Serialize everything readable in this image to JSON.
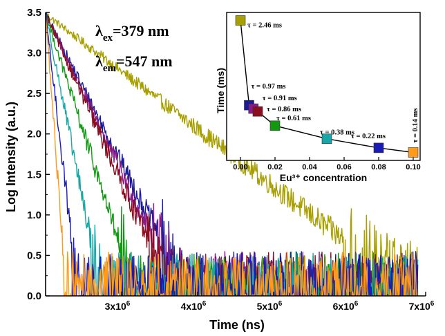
{
  "chart_data": [
    {
      "type": "line",
      "title": "",
      "xlabel": "Time (ns)",
      "ylabel": "Log Intensity (a.u.)",
      "xlim": [
        2000000,
        7000000
      ],
      "ylim": [
        0,
        3.5
      ],
      "x_tick_labels": [
        {
          "value": 3000000,
          "mantissa": "3x10",
          "exp": "6"
        },
        {
          "value": 4000000,
          "mantissa": "4x10",
          "exp": "6"
        },
        {
          "value": 5000000,
          "mantissa": "5x10",
          "exp": "6"
        },
        {
          "value": 6000000,
          "mantissa": "6x10",
          "exp": "6"
        },
        {
          "value": 7000000,
          "mantissa": "7x10",
          "exp": "6"
        }
      ],
      "y_ticks": [
        0.0,
        0.5,
        1.0,
        1.5,
        2.0,
        2.5,
        3.0,
        3.5
      ],
      "y_tick_labels": [
        "0.0",
        "0.5",
        "1.0",
        "1.5",
        "2.0",
        "2.5",
        "3.0",
        "3.5"
      ],
      "annotations": {
        "ex": {
          "lambda": "λ",
          "sub": "ex",
          "value": "=379 nm"
        },
        "em": {
          "lambda": "λ",
          "sub": "em",
          "value": "=547 nm"
        }
      },
      "series": [
        {
          "color": "#a89f00",
          "x0": 2000000,
          "decay_per_ns": 7.1e-07,
          "noise_floor": 0.45,
          "x_end": 6900000
        },
        {
          "color": "#1a1a9a",
          "x0": 2000000,
          "decay_per_ns": 1.84e-06,
          "noise_floor": 0.45,
          "x_end": 6900000
        },
        {
          "color": "#8a1a8a",
          "x0": 2000000,
          "decay_per_ns": 1.96e-06,
          "noise_floor": 0.45,
          "x_end": 6900000
        },
        {
          "color": "#8b0f1f",
          "x0": 2000000,
          "decay_per_ns": 2.08e-06,
          "noise_floor": 0.45,
          "x_end": 6900000
        },
        {
          "color": "#119911",
          "x0": 2000000,
          "decay_per_ns": 2.92e-06,
          "noise_floor": 0.45,
          "x_end": 6900000
        },
        {
          "color": "#18a6a6",
          "x0": 2000000,
          "decay_per_ns": 4.7e-06,
          "noise_floor": 0.4,
          "x_end": 6900000
        },
        {
          "color": "#1a1ab8",
          "x0": 2000000,
          "decay_per_ns": 8.1e-06,
          "noise_floor": 0.45,
          "x_end": 6900000
        },
        {
          "color": "#ff9a1a",
          "x0": 2000000,
          "decay_per_ns": 1.25e-05,
          "noise_floor": 0.3,
          "x_end": 6900000
        }
      ]
    },
    {
      "type": "scatter",
      "title": "",
      "xlabel": "Eu³⁺ concentration",
      "ylabel": "Time (ms)",
      "xlim": [
        -0.008,
        0.104
      ],
      "ylim": [
        0.0,
        2.6
      ],
      "x_ticks": [
        0.0,
        0.02,
        0.04,
        0.06,
        0.08,
        0.1
      ],
      "x_tick_labels": [
        "0.00",
        "0.02",
        "0.04",
        "0.06",
        "0.08",
        "0.10"
      ],
      "points": [
        {
          "x": 0.0,
          "y": 2.46,
          "color": "#a89f00",
          "label": "τ = 2.46 ms"
        },
        {
          "x": 0.005,
          "y": 0.97,
          "color": "#1a1a9a",
          "label": "τ = 0.97 ms"
        },
        {
          "x": 0.0075,
          "y": 0.91,
          "color": "#8a1a8a",
          "label": "τ = 0.91 ms"
        },
        {
          "x": 0.01,
          "y": 0.86,
          "color": "#8b0f1f",
          "label": "τ = 0.86 ms"
        },
        {
          "x": 0.02,
          "y": 0.61,
          "color": "#119911",
          "label": "τ = 0.61 ms"
        },
        {
          "x": 0.05,
          "y": 0.38,
          "color": "#18a6a6",
          "label": "τ = 0.38 ms"
        },
        {
          "x": 0.08,
          "y": 0.22,
          "color": "#1a1ab8",
          "label": "τ = 0.22 ms"
        },
        {
          "x": 0.1,
          "y": 0.14,
          "color": "#ff9a1a",
          "label": "τ = 0.14 ms"
        }
      ]
    }
  ]
}
